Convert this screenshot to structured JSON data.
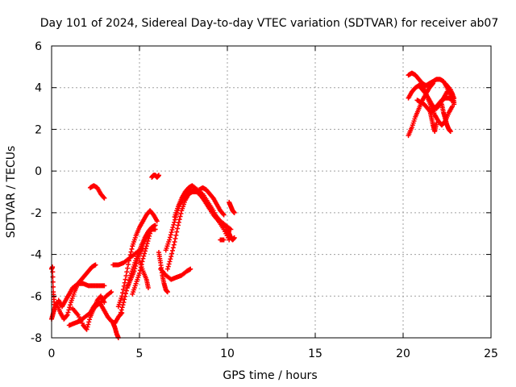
{
  "chart_data": {
    "type": "scatter",
    "title": "Day 101 of 2024, Sidereal Day-to-day VTEC variation (SDTVAR) for receiver ab07",
    "xlabel": "GPS time / hours",
    "ylabel": "SDTVAR / TECUs",
    "xlim": [
      0,
      25
    ],
    "ylim": [
      -8,
      6
    ],
    "xticks": [
      0,
      5,
      10,
      15,
      20,
      25
    ],
    "yticks": [
      -8,
      -6,
      -4,
      -2,
      0,
      2,
      4,
      6
    ],
    "grid": true,
    "marker": "+",
    "color": "#ff0000",
    "segments": [
      {
        "name": "arc-1",
        "x": [
          0,
          0.05,
          0.1,
          0.15
        ],
        "y": [
          -4.7,
          -4.6,
          -5.8,
          -6.4
        ]
      },
      {
        "name": "arc-2",
        "x": [
          0,
          0.1,
          0.2,
          0.3
        ],
        "y": [
          -7.1,
          -6.8,
          -6.5,
          -6.3
        ]
      },
      {
        "name": "arc-3",
        "x": [
          0.3,
          0.5,
          0.7,
          0.9,
          1.1,
          1.3,
          1.5,
          1.7,
          1.9,
          2.1,
          2.3,
          2.5
        ],
        "y": [
          -6.4,
          -6.8,
          -7.1,
          -6.9,
          -6.3,
          -5.8,
          -5.4,
          -5.2,
          -5.0,
          -4.8,
          -4.6,
          -4.5
        ]
      },
      {
        "name": "arc-4",
        "x": [
          0.4,
          0.6,
          0.8,
          1.0,
          1.2,
          1.5,
          1.8,
          2.1,
          2.4,
          2.7,
          3.0
        ],
        "y": [
          -6.2,
          -6.5,
          -6.2,
          -5.9,
          -5.6,
          -5.4,
          -5.4,
          -5.5,
          -5.5,
          -5.5,
          -5.5
        ]
      },
      {
        "name": "arc-5",
        "x": [
          1.0,
          1.3,
          1.6,
          1.9,
          2.2,
          2.5,
          2.8,
          3.1,
          3.4
        ],
        "y": [
          -7.4,
          -7.3,
          -7.2,
          -7.0,
          -6.8,
          -6.5,
          -6.3,
          -6.0,
          -5.8
        ]
      },
      {
        "name": "arc-6",
        "x": [
          1.2,
          1.5,
          1.8,
          2.0,
          2.2,
          2.4,
          2.6,
          2.8,
          3.0
        ],
        "y": [
          -6.6,
          -6.9,
          -7.4,
          -7.6,
          -7.0,
          -6.6,
          -6.2,
          -6.0,
          -6.3
        ]
      },
      {
        "name": "arc-7",
        "x": [
          2.2,
          2.4,
          2.6,
          2.8,
          3.0,
          3.2,
          3.4,
          3.6,
          3.8,
          4.0
        ],
        "y": [
          -6.8,
          -6.5,
          -6.3,
          -6.4,
          -6.7,
          -7.0,
          -7.2,
          -7.3,
          -7.0,
          -6.8
        ]
      },
      {
        "name": "arc-8",
        "x": [
          2.2,
          2.4,
          2.6,
          2.8,
          3.0
        ],
        "y": [
          -0.8,
          -0.7,
          -0.8,
          -1.1,
          -1.3
        ]
      },
      {
        "name": "arc-9",
        "x": [
          3.5,
          3.6,
          3.7,
          3.8
        ],
        "y": [
          -7.3,
          -7.5,
          -7.8,
          -8.0
        ]
      },
      {
        "name": "arc-10",
        "x": [
          3.5,
          3.8,
          4.1,
          4.4,
          4.7,
          5.0,
          5.2
        ],
        "y": [
          -4.5,
          -4.5,
          -4.4,
          -4.2,
          -4.0,
          -3.8,
          -3.7
        ]
      },
      {
        "name": "arc-11",
        "x": [
          3.8,
          4.0,
          4.2,
          4.4,
          4.6,
          4.8,
          5.0,
          5.2,
          5.4,
          5.6,
          5.8,
          6.0
        ],
        "y": [
          -6.5,
          -6.0,
          -5.2,
          -4.3,
          -3.6,
          -3.1,
          -2.7,
          -2.4,
          -2.1,
          -1.9,
          -2.1,
          -2.4
        ]
      },
      {
        "name": "arc-12",
        "x": [
          3.9,
          4.1,
          4.3,
          4.5,
          4.7,
          4.9,
          5.1,
          5.3,
          5.5,
          5.7,
          5.9
        ],
        "y": [
          -6.9,
          -6.3,
          -5.6,
          -5.0,
          -4.5,
          -4.0,
          -3.6,
          -3.2,
          -2.9,
          -2.7,
          -2.6
        ]
      },
      {
        "name": "arc-13",
        "x": [
          4.3,
          4.5,
          4.7,
          4.9,
          5.1,
          5.3,
          5.5,
          5.7,
          5.9
        ],
        "y": [
          -5.6,
          -5.2,
          -4.8,
          -4.2,
          -3.8,
          -3.3,
          -3.0,
          -2.8,
          -2.8
        ]
      },
      {
        "name": "arc-14",
        "x": [
          4.6,
          4.8,
          5.0,
          5.2,
          5.4,
          5.6
        ],
        "y": [
          -5.9,
          -5.4,
          -4.9,
          -4.2,
          -3.6,
          -3.0
        ]
      },
      {
        "name": "arc-15",
        "x": [
          5.0,
          5.2,
          5.4,
          5.5
        ],
        "y": [
          -4.3,
          -4.8,
          -5.2,
          -5.6
        ]
      },
      {
        "name": "arc-16",
        "x": [
          5.7,
          5.8,
          5.9,
          6.0,
          6.1
        ],
        "y": [
          -0.3,
          -0.2,
          -0.2,
          -0.3,
          -0.2
        ]
      },
      {
        "name": "arc-17",
        "x": [
          6.1,
          6.2,
          6.3,
          6.4,
          6.5,
          6.6
        ],
        "y": [
          -3.9,
          -4.4,
          -5.0,
          -5.4,
          -5.7,
          -5.8
        ]
      },
      {
        "name": "arc-18",
        "x": [
          6.2,
          6.5,
          6.8,
          7.1,
          7.4,
          7.7,
          7.9
        ],
        "y": [
          -4.7,
          -5.0,
          -5.2,
          -5.1,
          -5.0,
          -4.8,
          -4.7
        ]
      },
      {
        "name": "arc-19",
        "x": [
          6.5,
          6.7,
          6.9,
          7.1,
          7.3,
          7.5
        ],
        "y": [
          -3.8,
          -3.3,
          -2.7,
          -2.1,
          -1.6,
          -1.3
        ]
      },
      {
        "name": "arc-20",
        "x": [
          6.6,
          6.8,
          7.0,
          7.2,
          7.4,
          7.6,
          7.8,
          8.0
        ],
        "y": [
          -4.7,
          -4.1,
          -3.4,
          -2.6,
          -1.9,
          -1.4,
          -1.1,
          -1.0
        ]
      },
      {
        "name": "arc-21",
        "x": [
          7.0,
          7.2,
          7.4,
          7.6,
          7.8,
          8.0,
          8.3,
          8.6,
          8.9,
          9.2,
          9.5,
          9.8,
          10.1
        ],
        "y": [
          -2.2,
          -1.7,
          -1.3,
          -1.0,
          -0.8,
          -0.7,
          -0.9,
          -1.3,
          -1.7,
          -2.1,
          -2.4,
          -2.6,
          -2.8
        ]
      },
      {
        "name": "arc-22",
        "x": [
          7.5,
          7.8,
          8.1,
          8.4,
          8.7,
          9.0,
          9.3,
          9.6,
          9.9,
          10.2
        ],
        "y": [
          -1.3,
          -1.0,
          -0.9,
          -1.1,
          -1.4,
          -1.8,
          -2.1,
          -2.4,
          -2.6,
          -2.8
        ]
      },
      {
        "name": "arc-23",
        "x": [
          8.0,
          8.3,
          8.6,
          8.9,
          9.2,
          9.5,
          9.8,
          10.1
        ],
        "y": [
          -1.0,
          -1.0,
          -1.1,
          -1.5,
          -1.9,
          -2.4,
          -2.8,
          -3.3
        ]
      },
      {
        "name": "arc-24",
        "x": [
          8.4,
          8.6,
          8.8,
          9.0,
          9.2,
          9.4,
          9.6,
          9.8
        ],
        "y": [
          -0.9,
          -0.8,
          -0.9,
          -1.1,
          -1.3,
          -1.6,
          -1.9,
          -2.1
        ]
      },
      {
        "name": "arc-25",
        "x": [
          10.1,
          10.2,
          10.3,
          10.4
        ],
        "y": [
          -1.5,
          -1.7,
          -1.9,
          -2.0
        ]
      },
      {
        "name": "arc-26",
        "x": [
          10.0,
          10.1,
          10.2,
          10.3,
          10.4
        ],
        "y": [
          -2.8,
          -3.0,
          -3.2,
          -3.3,
          -3.2
        ]
      },
      {
        "name": "arc-27",
        "x": [
          9.6,
          9.8
        ],
        "y": [
          -3.3,
          -3.3
        ]
      },
      {
        "name": "arc-28",
        "x": [
          20.3,
          20.5,
          20.7,
          20.9,
          21.1,
          21.3,
          21.5,
          21.7,
          21.9,
          22.1,
          22.3,
          22.5,
          22.7,
          22.9
        ],
        "y": [
          4.6,
          4.7,
          4.6,
          4.4,
          4.2,
          4.1,
          4.2,
          4.3,
          4.4,
          4.4,
          4.3,
          4.0,
          3.6,
          3.2
        ]
      },
      {
        "name": "arc-29",
        "x": [
          20.3,
          20.5,
          20.7,
          20.9,
          21.1,
          21.3,
          21.5,
          21.7,
          21.9,
          22.1,
          22.3,
          22.5,
          22.7,
          22.9
        ],
        "y": [
          3.5,
          3.8,
          4.0,
          4.1,
          3.9,
          3.7,
          3.4,
          3.1,
          3.0,
          3.2,
          3.5,
          3.8,
          3.9,
          3.5
        ]
      },
      {
        "name": "arc-30",
        "x": [
          20.3,
          20.5,
          20.7,
          20.9,
          21.1,
          21.3,
          21.5,
          21.7
        ],
        "y": [
          1.7,
          2.1,
          2.6,
          3.0,
          3.4,
          3.7,
          4.0,
          4.2
        ]
      },
      {
        "name": "arc-31",
        "x": [
          20.8,
          21.0,
          21.2,
          21.4,
          21.6,
          21.8,
          22.0,
          22.2,
          22.4,
          22.6,
          22.8
        ],
        "y": [
          3.4,
          3.3,
          3.2,
          3.0,
          2.8,
          3.0,
          3.2,
          3.4,
          3.5,
          3.5,
          3.4
        ]
      },
      {
        "name": "arc-32",
        "x": [
          21.0,
          21.2,
          21.4,
          21.6,
          21.8,
          22.0,
          22.2,
          22.4,
          22.6,
          22.8
        ],
        "y": [
          4.2,
          3.9,
          3.5,
          3.1,
          2.7,
          2.4,
          2.2,
          2.4,
          2.8,
          3.1
        ]
      },
      {
        "name": "arc-33",
        "x": [
          21.5,
          21.6,
          21.7,
          21.8,
          21.9
        ],
        "y": [
          3.0,
          2.6,
          2.2,
          1.9,
          2.3
        ]
      },
      {
        "name": "arc-34",
        "x": [
          22.2,
          22.3,
          22.4,
          22.5,
          22.6,
          22.7
        ],
        "y": [
          3.2,
          2.8,
          2.5,
          2.2,
          2.0,
          1.9
        ]
      },
      {
        "name": "arc-35",
        "x": [
          22.4,
          22.6,
          22.8,
          22.9
        ],
        "y": [
          4.2,
          4.0,
          3.7,
          3.3
        ]
      }
    ]
  }
}
